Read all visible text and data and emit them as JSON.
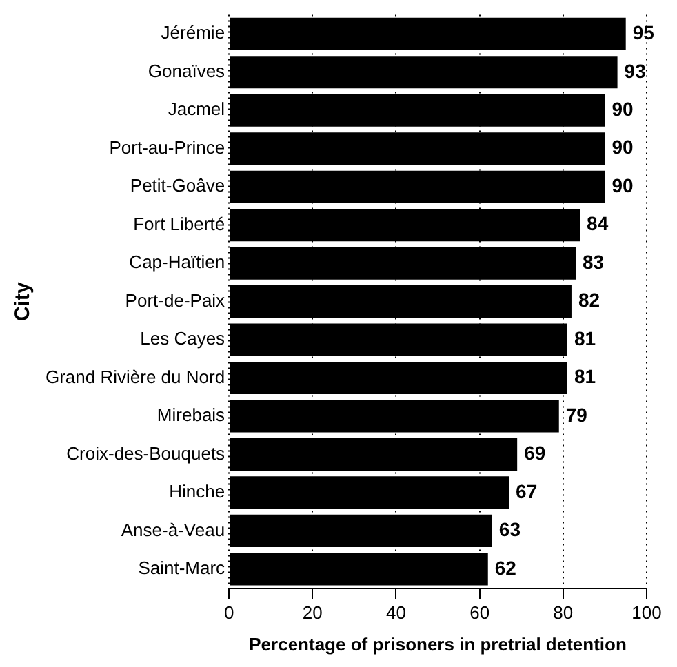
{
  "chart_data": {
    "type": "bar",
    "orientation": "horizontal",
    "xlabel": "Percentage of prisoners in pretrial detention",
    "ylabel": "City",
    "categories": [
      "Jérémie",
      "Gonaïves",
      "Jacmel",
      "Port-au-Prince",
      "Petit-Goâve",
      "Fort Liberté",
      "Cap-Haïtien",
      "Port-de-Paix",
      "Les Cayes",
      "Grand Rivière du Nord",
      "Mirebais",
      "Croix-des-Bouquets",
      "Hinche",
      "Anse-à-Veau",
      "Saint-Marc"
    ],
    "values": [
      95,
      93,
      90,
      90,
      90,
      84,
      83,
      82,
      81,
      81,
      79,
      69,
      67,
      63,
      62
    ],
    "color": "#000000",
    "xlim": [
      0,
      100
    ],
    "xticks": [
      0,
      20,
      40,
      60,
      80,
      100
    ],
    "grid": "x",
    "data_labels": true
  }
}
